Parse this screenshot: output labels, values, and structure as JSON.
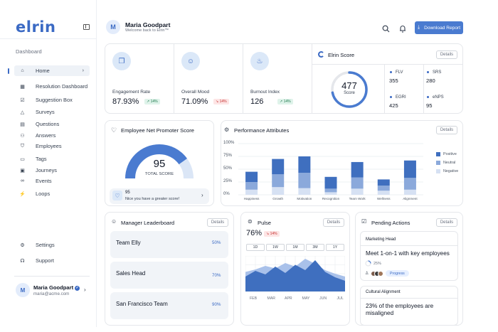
{
  "brand": {
    "logo": "elrin"
  },
  "sidebar": {
    "section": "Dashboard",
    "items": [
      {
        "label": "Home",
        "icon": "home-icon",
        "glyph": "⌂"
      },
      {
        "label": "Resolution Dashboard",
        "icon": "dashboard-icon",
        "glyph": "▦"
      },
      {
        "label": "Suggestion Box",
        "icon": "inbox-icon",
        "glyph": "☑"
      },
      {
        "label": "Surveys",
        "icon": "survey-icon",
        "glyph": "△"
      },
      {
        "label": "Questions",
        "icon": "question-icon",
        "glyph": "▤"
      },
      {
        "label": "Answers",
        "icon": "answers-icon",
        "glyph": "⚇"
      },
      {
        "label": "Employees",
        "icon": "employees-icon",
        "glyph": "⛉"
      },
      {
        "label": "Tags",
        "icon": "tag-icon",
        "glyph": "▭"
      },
      {
        "label": "Journeys",
        "icon": "journey-icon",
        "glyph": "▣"
      },
      {
        "label": "Events",
        "icon": "events-icon",
        "glyph": "∞"
      },
      {
        "label": "Loops",
        "icon": "loops-icon",
        "glyph": "⚡"
      }
    ],
    "bottom": [
      {
        "label": "Settings",
        "icon": "settings-icon",
        "glyph": "⚙"
      },
      {
        "label": "Support",
        "icon": "headset-icon",
        "glyph": "☊"
      }
    ],
    "user": {
      "initial": "M",
      "name": "Maria Goodpart",
      "email": "maria@acme.com"
    }
  },
  "header": {
    "initial": "M",
    "name": "Maria Goodpart",
    "subtitle": "Welcome back to Elrin™",
    "download_label": "Download Report"
  },
  "stats": [
    {
      "label": "Engagement Rate",
      "value": "87.93%",
      "change": "14%",
      "direction": "up",
      "icon": "chat-icon",
      "glyph": "❐"
    },
    {
      "label": "Overall Mood",
      "value": "71.09%",
      "change": "14%",
      "direction": "down",
      "icon": "smile-icon",
      "glyph": "☺"
    },
    {
      "label": "Burnout Index",
      "value": "126",
      "change": "14%",
      "direction": "up",
      "icon": "flame-icon",
      "glyph": "♨"
    }
  ],
  "elrin_score": {
    "title": "Elrin Score",
    "details": "Details",
    "value": "477",
    "caption": "Score",
    "fill": 0.72,
    "metrics": [
      {
        "name": "FLV",
        "value": "355"
      },
      {
        "name": "SRS",
        "value": "280"
      },
      {
        "name": "EGRI",
        "value": "425"
      },
      {
        "name": "eNPS",
        "value": "95"
      }
    ]
  },
  "enps": {
    "title": "Employee Net Promoter Score",
    "value": "95",
    "caption": "TOTAL SCORE",
    "fill": 0.8,
    "note_value": "95",
    "note_text": "Nice you have a greater score!"
  },
  "performance": {
    "title": "Performance Attributes",
    "details": "Details",
    "legend": [
      "Positive",
      "Neutral",
      "Negative"
    ]
  },
  "chart_data": {
    "type": "bar",
    "stacked": true,
    "categories": [
      "Happiness",
      "Growth",
      "Motivation",
      "Recognition",
      "Team Work",
      "Wellness",
      "Alignment"
    ],
    "series": [
      {
        "name": "Negative",
        "values": [
          10,
          15,
          13,
          5,
          12,
          8,
          10
        ]
      },
      {
        "name": "Neutral",
        "values": [
          15,
          25,
          30,
          7,
          22,
          10,
          23
        ]
      },
      {
        "name": "Positive",
        "values": [
          20,
          30,
          32,
          23,
          30,
          12,
          34
        ]
      }
    ],
    "y_ticks": [
      "100%",
      "75%",
      "50%",
      "25%",
      "0%"
    ],
    "ylim": [
      0,
      100
    ],
    "colors": {
      "Positive": "#3f6fbf",
      "Neutral": "#8ba9db",
      "Negative": "#d6e1f3"
    }
  },
  "leaderboard": {
    "title": "Manager Leaderboard",
    "details": "Details",
    "rows": [
      {
        "name": "Team Elly",
        "pct": "50%"
      },
      {
        "name": "Sales Head",
        "pct": "70%"
      },
      {
        "name": "San Francisco Team",
        "pct": "90%"
      }
    ]
  },
  "pulse": {
    "title": "Pulse",
    "details": "Details",
    "value": "76%",
    "change": "14%",
    "periods": [
      "1D",
      "1W",
      "1M",
      "3M",
      "1Y"
    ],
    "months": [
      "FEB",
      "MAR",
      "APR",
      "MAY",
      "JUN",
      "JUL"
    ],
    "series_dark": [
      42,
      58,
      48,
      70,
      52,
      75,
      60,
      88,
      55,
      40,
      30
    ],
    "series_light": [
      55,
      62,
      72,
      65,
      80,
      70,
      92,
      78,
      60,
      50,
      42
    ]
  },
  "pending": {
    "title": "Pending Actions",
    "details": "Details",
    "items": [
      {
        "tag": "Marketing Head",
        "title": "Meet 1-on-1 with key employees",
        "pct": "25%",
        "status": "Progress"
      },
      {
        "tag": "Cultural Alignment",
        "title": "23% of the employees are misaligned"
      }
    ]
  }
}
